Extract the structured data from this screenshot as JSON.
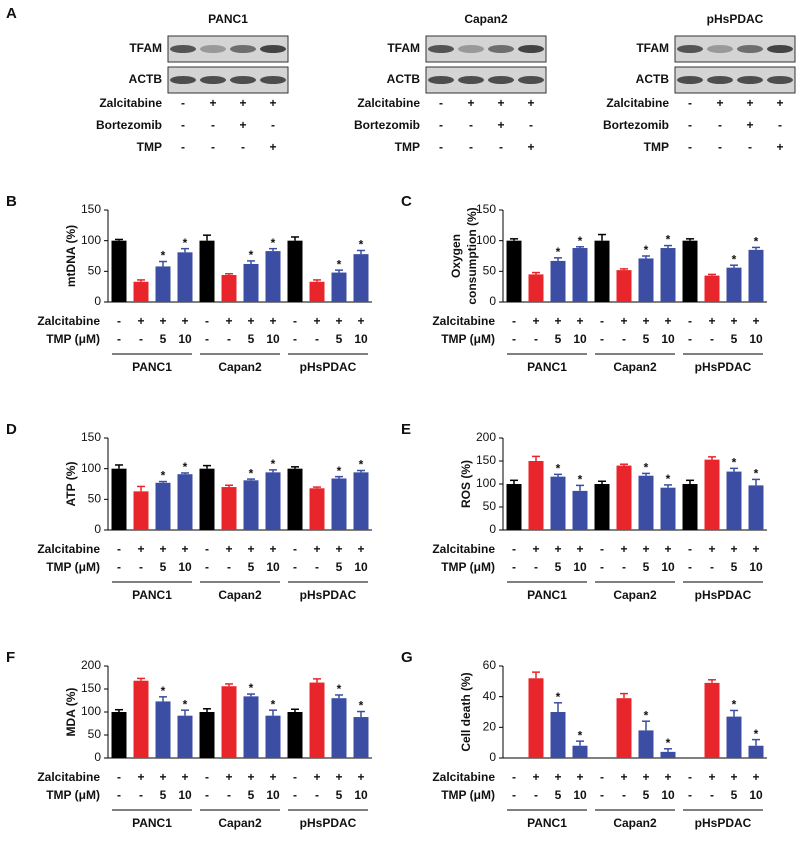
{
  "blots": {
    "panel": "A",
    "cell_lines": [
      {
        "name": "PANC1",
        "rows": [
          "TFAM",
          "ACTB"
        ],
        "treatments": [
          {
            "name": "Zalcitabine",
            "labels": [
              "-",
              "+",
              "+",
              "+"
            ]
          },
          {
            "name": "Bortezomib",
            "labels": [
              "-",
              "-",
              "+",
              "-"
            ]
          },
          {
            "name": "TMP",
            "labels": [
              "-",
              "-",
              "-",
              "+"
            ]
          }
        ]
      },
      {
        "name": "Capan2",
        "rows": [
          "TFAM",
          "ACTB"
        ],
        "treatments": [
          {
            "name": "Zalcitabine",
            "labels": [
              "-",
              "+",
              "+",
              "+"
            ]
          },
          {
            "name": "Bortezomib",
            "labels": [
              "-",
              "-",
              "+",
              "-"
            ]
          },
          {
            "name": "TMP",
            "labels": [
              "-",
              "-",
              "-",
              "+"
            ]
          }
        ]
      },
      {
        "name": "pHsPDAC",
        "rows": [
          "TFAM",
          "ACTB"
        ],
        "treatments": [
          {
            "name": "Zalcitabine",
            "labels": [
              "-",
              "+",
              "+",
              "+"
            ]
          },
          {
            "name": "Bortezomib",
            "labels": [
              "-",
              "-",
              "+",
              "-"
            ]
          },
          {
            "name": "TMP",
            "labels": [
              "-",
              "-",
              "-",
              "+"
            ]
          }
        ]
      }
    ]
  },
  "chart_data": [
    {
      "type": "bar",
      "panel": "B",
      "ylabel": "mtDNA (%)",
      "ylim": [
        0,
        150
      ],
      "yticks": [
        0,
        50,
        100,
        150
      ],
      "groups": [
        "PANC1",
        "Capan2",
        "pHsPDAC"
      ],
      "treatments": [
        {
          "name": "Zalcitabine",
          "labels": [
            "-",
            "+",
            "+",
            "+",
            "-",
            "+",
            "+",
            "+",
            "-",
            "+",
            "+",
            "+"
          ]
        },
        {
          "name": "TMP (μM)",
          "labels": [
            "-",
            "-",
            "5",
            "10",
            "-",
            "-",
            "5",
            "10",
            "-",
            "-",
            "5",
            "10"
          ]
        }
      ],
      "values": [
        100,
        33,
        58,
        81,
        100,
        44,
        62,
        83,
        100,
        33,
        48,
        78
      ],
      "errors": [
        2,
        3,
        8,
        6,
        9,
        2,
        5,
        4,
        6,
        3,
        4,
        6
      ],
      "colors": [
        "#000000",
        "#e8252a",
        "#3b4ea3",
        "#3b4ea3",
        "#000000",
        "#e8252a",
        "#3b4ea3",
        "#3b4ea3",
        "#000000",
        "#e8252a",
        "#3b4ea3",
        "#3b4ea3"
      ],
      "annotations": [
        null,
        null,
        "*",
        "*",
        null,
        null,
        "*",
        "*",
        null,
        null,
        "*",
        "*"
      ]
    },
    {
      "type": "bar",
      "panel": "C",
      "ylabel": [
        "Oxygen",
        "consumption (%)"
      ],
      "ylim": [
        0,
        150
      ],
      "yticks": [
        0,
        50,
        100,
        150
      ],
      "groups": [
        "PANC1",
        "Capan2",
        "pHsPDAC"
      ],
      "treatments": [
        {
          "name": "Zalcitabine",
          "labels": [
            "-",
            "+",
            "+",
            "+",
            "-",
            "+",
            "+",
            "+",
            "-",
            "+",
            "+",
            "+"
          ]
        },
        {
          "name": "TMP (μM)",
          "labels": [
            "-",
            "-",
            "5",
            "10",
            "-",
            "-",
            "5",
            "10",
            "-",
            "-",
            "5",
            "10"
          ]
        }
      ],
      "values": [
        100,
        45,
        67,
        88,
        100,
        52,
        71,
        88,
        100,
        43,
        56,
        85
      ],
      "errors": [
        3,
        3,
        5,
        2,
        10,
        2,
        4,
        4,
        3,
        2,
        4,
        4
      ],
      "colors": [
        "#000000",
        "#e8252a",
        "#3b4ea3",
        "#3b4ea3",
        "#000000",
        "#e8252a",
        "#3b4ea3",
        "#3b4ea3",
        "#000000",
        "#e8252a",
        "#3b4ea3",
        "#3b4ea3"
      ],
      "annotations": [
        null,
        null,
        "*",
        "*",
        null,
        null,
        "*",
        "*",
        null,
        null,
        "*",
        "*"
      ]
    },
    {
      "type": "bar",
      "panel": "D",
      "ylabel": "ATP (%)",
      "ylim": [
        0,
        150
      ],
      "yticks": [
        0,
        50,
        100,
        150
      ],
      "groups": [
        "PANC1",
        "Capan2",
        "pHsPDAC"
      ],
      "treatments": [
        {
          "name": "Zalcitabine",
          "labels": [
            "-",
            "+",
            "+",
            "+",
            "-",
            "+",
            "+",
            "+",
            "-",
            "+",
            "+",
            "+"
          ]
        },
        {
          "name": "TMP (μM)",
          "labels": [
            "-",
            "-",
            "5",
            "10",
            "-",
            "-",
            "5",
            "10",
            "-",
            "-",
            "5",
            "10"
          ]
        }
      ],
      "values": [
        100,
        63,
        77,
        91,
        100,
        70,
        81,
        94,
        100,
        68,
        84,
        94
      ],
      "errors": [
        6,
        8,
        2,
        2,
        5,
        3,
        2,
        4,
        3,
        2,
        3,
        3
      ],
      "colors": [
        "#000000",
        "#e8252a",
        "#3b4ea3",
        "#3b4ea3",
        "#000000",
        "#e8252a",
        "#3b4ea3",
        "#3b4ea3",
        "#000000",
        "#e8252a",
        "#3b4ea3",
        "#3b4ea3"
      ],
      "annotations": [
        null,
        null,
        "*",
        "*",
        null,
        null,
        "*",
        "*",
        null,
        null,
        "*",
        "*"
      ]
    },
    {
      "type": "bar",
      "panel": "E",
      "ylabel": "ROS (%)",
      "ylim": [
        0,
        200
      ],
      "yticks": [
        0,
        50,
        100,
        150,
        200
      ],
      "groups": [
        "PANC1",
        "Capan2",
        "pHsPDAC"
      ],
      "treatments": [
        {
          "name": "Zalcitabine",
          "labels": [
            "-",
            "+",
            "+",
            "+",
            "-",
            "+",
            "+",
            "+",
            "-",
            "+",
            "+",
            "+"
          ]
        },
        {
          "name": "TMP (μM)",
          "labels": [
            "-",
            "-",
            "5",
            "10",
            "-",
            "-",
            "5",
            "10",
            "-",
            "-",
            "5",
            "10"
          ]
        }
      ],
      "values": [
        100,
        150,
        116,
        85,
        100,
        140,
        118,
        92,
        100,
        153,
        127,
        97
      ],
      "errors": [
        8,
        10,
        5,
        12,
        6,
        3,
        5,
        6,
        8,
        6,
        7,
        13
      ],
      "colors": [
        "#000000",
        "#e8252a",
        "#3b4ea3",
        "#3b4ea3",
        "#000000",
        "#e8252a",
        "#3b4ea3",
        "#3b4ea3",
        "#000000",
        "#e8252a",
        "#3b4ea3",
        "#3b4ea3"
      ],
      "annotations": [
        null,
        null,
        "*",
        "*",
        null,
        null,
        "*",
        "*",
        null,
        null,
        "*",
        "*"
      ]
    },
    {
      "type": "bar",
      "panel": "F",
      "ylabel": "MDA (%)",
      "ylim": [
        0,
        200
      ],
      "yticks": [
        0,
        50,
        100,
        150,
        200
      ],
      "groups": [
        "PANC1",
        "Capan2",
        "pHsPDAC"
      ],
      "treatments": [
        {
          "name": "Zalcitabine",
          "labels": [
            "-",
            "+",
            "+",
            "+",
            "-",
            "+",
            "+",
            "+",
            "-",
            "+",
            "+",
            "+"
          ]
        },
        {
          "name": "TMP (μM)",
          "labels": [
            "-",
            "-",
            "5",
            "10",
            "-",
            "-",
            "5",
            "10",
            "-",
            "-",
            "5",
            "10"
          ]
        }
      ],
      "values": [
        100,
        168,
        123,
        92,
        100,
        156,
        134,
        92,
        100,
        164,
        130,
        89
      ],
      "errors": [
        5,
        5,
        10,
        12,
        7,
        5,
        5,
        12,
        6,
        8,
        7,
        12
      ],
      "colors": [
        "#000000",
        "#e8252a",
        "#3b4ea3",
        "#3b4ea3",
        "#000000",
        "#e8252a",
        "#3b4ea3",
        "#3b4ea3",
        "#000000",
        "#e8252a",
        "#3b4ea3",
        "#3b4ea3"
      ],
      "annotations": [
        null,
        null,
        "*",
        "*",
        null,
        null,
        "*",
        "*",
        null,
        null,
        "*",
        "*"
      ]
    },
    {
      "type": "bar",
      "panel": "G",
      "ylabel": "Cell death (%)",
      "ylim": [
        0,
        60
      ],
      "yticks": [
        0,
        20,
        40,
        60
      ],
      "groups": [
        "PANC1",
        "Capan2",
        "pHsPDAC"
      ],
      "treatments": [
        {
          "name": "Zalcitabine",
          "labels": [
            "-",
            "+",
            "+",
            "+",
            "-",
            "+",
            "+",
            "+",
            "-",
            "+",
            "+",
            "+"
          ]
        },
        {
          "name": "TMP (μM)",
          "labels": [
            "-",
            "-",
            "5",
            "10",
            "-",
            "-",
            "5",
            "10",
            "-",
            "-",
            "5",
            "10"
          ]
        }
      ],
      "values": [
        0,
        52,
        30,
        8,
        0,
        39,
        18,
        4,
        0,
        49,
        27,
        8
      ],
      "errors": [
        null,
        4,
        6,
        3,
        null,
        3,
        6,
        2,
        null,
        2,
        4,
        4
      ],
      "colors": [
        "#000000",
        "#e8252a",
        "#3b4ea3",
        "#3b4ea3",
        "#000000",
        "#e8252a",
        "#3b4ea3",
        "#3b4ea3",
        "#000000",
        "#e8252a",
        "#3b4ea3",
        "#3b4ea3"
      ],
      "annotations": [
        null,
        null,
        "*",
        "*",
        null,
        null,
        "*",
        "*",
        null,
        null,
        "*",
        "*"
      ]
    }
  ]
}
